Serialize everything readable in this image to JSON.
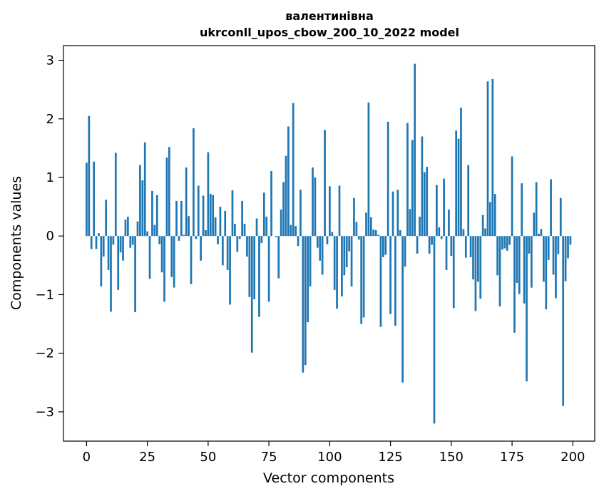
{
  "chart_data": {
    "type": "bar",
    "title": [
      "валентинівна",
      "ukrconll_upos_cbow_200_10_2022 model"
    ],
    "xlabel": "Vector components",
    "ylabel": "Components values",
    "xlim": [
      -9.5,
      209
    ],
    "ylim": [
      -3.5,
      3.25
    ],
    "xticks": [
      0,
      25,
      50,
      75,
      100,
      125,
      150,
      175,
      200
    ],
    "xtick_labels": [
      "0",
      "25",
      "50",
      "75",
      "100",
      "125",
      "150",
      "175",
      "200"
    ],
    "yticks": [
      -3,
      -2,
      -1,
      0,
      1,
      2,
      3
    ],
    "ytick_labels": [
      "−3",
      "−2",
      "−1",
      "0",
      "1",
      "2",
      "3"
    ],
    "grid": false,
    "bar_color": "#1f77b4",
    "x": [
      0,
      1,
      2,
      3,
      4,
      5,
      6,
      7,
      8,
      9,
      10,
      11,
      12,
      13,
      14,
      15,
      16,
      17,
      18,
      19,
      20,
      21,
      22,
      23,
      24,
      25,
      26,
      27,
      28,
      29,
      30,
      31,
      32,
      33,
      34,
      35,
      36,
      37,
      38,
      39,
      40,
      41,
      42,
      43,
      44,
      45,
      46,
      47,
      48,
      49,
      50,
      51,
      52,
      53,
      54,
      55,
      56,
      57,
      58,
      59,
      60,
      61,
      62,
      63,
      64,
      65,
      66,
      67,
      68,
      69,
      70,
      71,
      72,
      73,
      74,
      75,
      76,
      77,
      78,
      79,
      80,
      81,
      82,
      83,
      84,
      85,
      86,
      87,
      88,
      89,
      90,
      91,
      92,
      93,
      94,
      95,
      96,
      97,
      98,
      99,
      100,
      101,
      102,
      103,
      104,
      105,
      106,
      107,
      108,
      109,
      110,
      111,
      112,
      113,
      114,
      115,
      116,
      117,
      118,
      119,
      120,
      121,
      122,
      123,
      124,
      125,
      126,
      127,
      128,
      129,
      130,
      131,
      132,
      133,
      134,
      135,
      136,
      137,
      138,
      139,
      140,
      141,
      142,
      143,
      144,
      145,
      146,
      147,
      148,
      149,
      150,
      151,
      152,
      153,
      154,
      155,
      156,
      157,
      158,
      159,
      160,
      161,
      162,
      163,
      164,
      165,
      166,
      167,
      168,
      169,
      170,
      171,
      172,
      173,
      174,
      175,
      176,
      177,
      178,
      179,
      180,
      181,
      182,
      183,
      184,
      185,
      186,
      187,
      188,
      189,
      190,
      191,
      192,
      193,
      194,
      195,
      196,
      197,
      198,
      199
    ],
    "values": [
      1.25,
      2.05,
      -0.22,
      1.27,
      -0.22,
      0.05,
      -0.86,
      -0.35,
      0.62,
      -0.58,
      -1.29,
      -0.15,
      1.42,
      -0.92,
      -0.28,
      -0.42,
      0.28,
      0.33,
      -0.2,
      -0.15,
      -1.3,
      0.25,
      1.21,
      0.95,
      1.6,
      0.08,
      -0.73,
      0.77,
      0.19,
      0.7,
      -0.14,
      -0.62,
      -1.12,
      1.34,
      1.52,
      -0.7,
      -0.88,
      0.6,
      -0.08,
      0.6,
      0.02,
      1.17,
      0.34,
      -0.82,
      1.84,
      -0.05,
      0.86,
      -0.42,
      0.69,
      0.1,
      1.43,
      0.72,
      0.7,
      0.32,
      -0.14,
      0.5,
      -0.5,
      0.43,
      -0.58,
      -1.17,
      0.78,
      0.21,
      -0.27,
      -0.05,
      0.6,
      0.21,
      -0.35,
      -1.04,
      -1.99,
      -1.08,
      0.3,
      -1.38,
      -0.12,
      0.74,
      0.33,
      -1.12,
      1.11,
      0.0,
      -0.02,
      -0.72,
      0.45,
      0.92,
      1.37,
      1.87,
      0.19,
      2.27,
      0.17,
      -0.17,
      0.79,
      -2.33,
      -2.2,
      -1.47,
      -0.86,
      1.17,
      1.0,
      -0.2,
      -0.42,
      -0.66,
      1.81,
      -0.14,
      0.85,
      0.07,
      -0.92,
      -1.24,
      0.86,
      -1.03,
      -0.67,
      -0.53,
      -0.26,
      -0.86,
      0.65,
      0.24,
      -0.06,
      -1.5,
      -1.39,
      0.4,
      2.28,
      0.32,
      0.11,
      0.1,
      0.02,
      -1.55,
      -0.36,
      -0.32,
      1.95,
      -1.33,
      0.76,
      -1.53,
      0.79,
      0.1,
      -2.5,
      -0.52,
      1.93,
      0.46,
      1.64,
      2.94,
      -0.3,
      0.33,
      1.7,
      1.09,
      1.18,
      -0.3,
      -0.15,
      -3.2,
      0.87,
      0.15,
      -0.05,
      0.98,
      -0.58,
      0.45,
      -0.34,
      -1.23,
      1.8,
      1.66,
      2.19,
      0.12,
      -0.37,
      1.21,
      -0.36,
      -0.74,
      -1.28,
      -0.78,
      -1.07,
      0.36,
      0.13,
      2.64,
      0.58,
      2.68,
      0.72,
      -0.67,
      -1.2,
      -0.23,
      -0.21,
      -0.25,
      -0.15,
      1.36,
      -1.65,
      -0.8,
      -0.99,
      0.9,
      -1.15,
      -2.48,
      -0.3,
      -0.88,
      0.4,
      0.92,
      0.04,
      0.12,
      -0.78,
      -1.25,
      -0.41,
      0.97,
      -0.66,
      -1.06,
      -0.31,
      0.65,
      -2.9,
      -0.77,
      -0.38,
      -0.15
    ]
  }
}
